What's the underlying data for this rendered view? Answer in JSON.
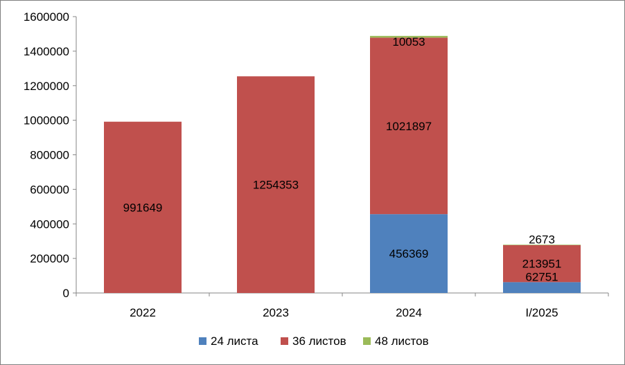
{
  "chart_data": {
    "type": "bar",
    "stacked": true,
    "categories": [
      "2022",
      "2023",
      "2024",
      "I/2025"
    ],
    "series": [
      {
        "name": "24 листа",
        "color": "#4f81bd",
        "values": [
          0,
          0,
          456369,
          62751
        ]
      },
      {
        "name": "36 листов",
        "color": "#c0504d",
        "values": [
          991649,
          1254353,
          1021897,
          213951
        ]
      },
      {
        "name": "48 листов",
        "color": "#9bbb59",
        "values": [
          0,
          0,
          10053,
          2673
        ]
      }
    ],
    "ylim": [
      0,
      1600000
    ],
    "yticks": [
      0,
      200000,
      400000,
      600000,
      800000,
      1000000,
      1200000,
      1400000,
      1600000
    ],
    "grid": false,
    "legend": "bottom"
  }
}
